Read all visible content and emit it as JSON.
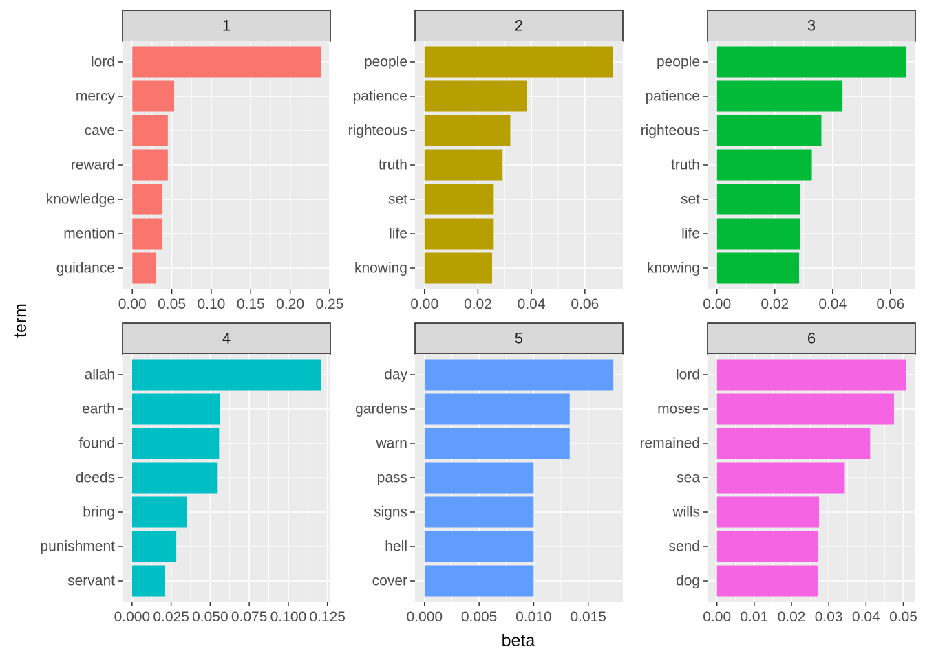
{
  "chart_data": {
    "type": "bar",
    "orientation": "horizontal",
    "faceted": true,
    "xlabel": "beta",
    "ylabel": "term",
    "grid": true,
    "panels": [
      {
        "title": "1",
        "color": "#F8766D",
        "terms": [
          "lord",
          "mercy",
          "cave",
          "reward",
          "knowledge",
          "mention",
          "guidance"
        ],
        "values": [
          0.239,
          0.053,
          0.045,
          0.045,
          0.038,
          0.038,
          0.03
        ],
        "xlim": [
          -0.0124,
          0.2509
        ],
        "ticks": [
          0,
          0.05,
          0.1,
          0.15,
          0.2,
          0.25
        ],
        "tick_labels": [
          "0.00",
          "0.05",
          "0.10",
          "0.15",
          "0.20",
          "0.25"
        ]
      },
      {
        "title": "2",
        "color": "#B79F00",
        "terms": [
          "people",
          "patience",
          "righteous",
          "truth",
          "set",
          "life",
          "knowing"
        ],
        "values": [
          0.0706,
          0.0384,
          0.0321,
          0.0292,
          0.0259,
          0.0259,
          0.0253
        ],
        "xlim": [
          -0.00353,
          0.0742
        ],
        "ticks": [
          0,
          0.02,
          0.04,
          0.06
        ],
        "tick_labels": [
          "0.00",
          "0.02",
          "0.04",
          "0.06"
        ]
      },
      {
        "title": "3",
        "color": "#00BA38",
        "terms": [
          "people",
          "patience",
          "righteous",
          "truth",
          "set",
          "life",
          "knowing"
        ],
        "values": [
          0.0653,
          0.0434,
          0.0361,
          0.0328,
          0.0288,
          0.0288,
          0.0284
        ],
        "xlim": [
          -0.00327,
          0.0686
        ],
        "ticks": [
          0,
          0.02,
          0.04,
          0.06
        ],
        "tick_labels": [
          "0.00",
          "0.02",
          "0.04",
          "0.06"
        ]
      },
      {
        "title": "4",
        "color": "#00BFC4",
        "terms": [
          "allah",
          "earth",
          "found",
          "deeds",
          "bring",
          "punishment",
          "servant"
        ],
        "values": [
          0.1208,
          0.0562,
          0.0557,
          0.0548,
          0.0352,
          0.0283,
          0.0212
        ],
        "xlim": [
          -0.0061,
          0.1269
        ],
        "ticks": [
          0,
          0.025,
          0.05,
          0.075,
          0.1,
          0.125
        ],
        "tick_labels": [
          "0.000",
          "0.025",
          "0.050",
          "0.075",
          "0.100",
          "0.125"
        ]
      },
      {
        "title": "5",
        "color": "#619CFF",
        "terms": [
          "day",
          "gardens",
          "warn",
          "pass",
          "signs",
          "hell",
          "cover"
        ],
        "values": [
          0.0173,
          0.0133,
          0.0133,
          0.01,
          0.01,
          0.01,
          0.01
        ],
        "xlim": [
          -0.00087,
          0.01817
        ],
        "ticks": [
          0,
          0.005,
          0.01,
          0.015
        ],
        "tick_labels": [
          "0.000",
          "0.005",
          "0.010",
          "0.015"
        ]
      },
      {
        "title": "6",
        "color": "#F564E3",
        "terms": [
          "lord",
          "moses",
          "remained",
          "sea",
          "wills",
          "send",
          "dog"
        ],
        "values": [
          0.0507,
          0.0475,
          0.0411,
          0.0343,
          0.0274,
          0.0272,
          0.027
        ],
        "xlim": [
          -0.00253,
          0.05323
        ],
        "ticks": [
          0,
          0.01,
          0.02,
          0.03,
          0.04,
          0.05
        ],
        "tick_labels": [
          "0.00",
          "0.01",
          "0.02",
          "0.03",
          "0.04",
          "0.05"
        ]
      }
    ]
  }
}
